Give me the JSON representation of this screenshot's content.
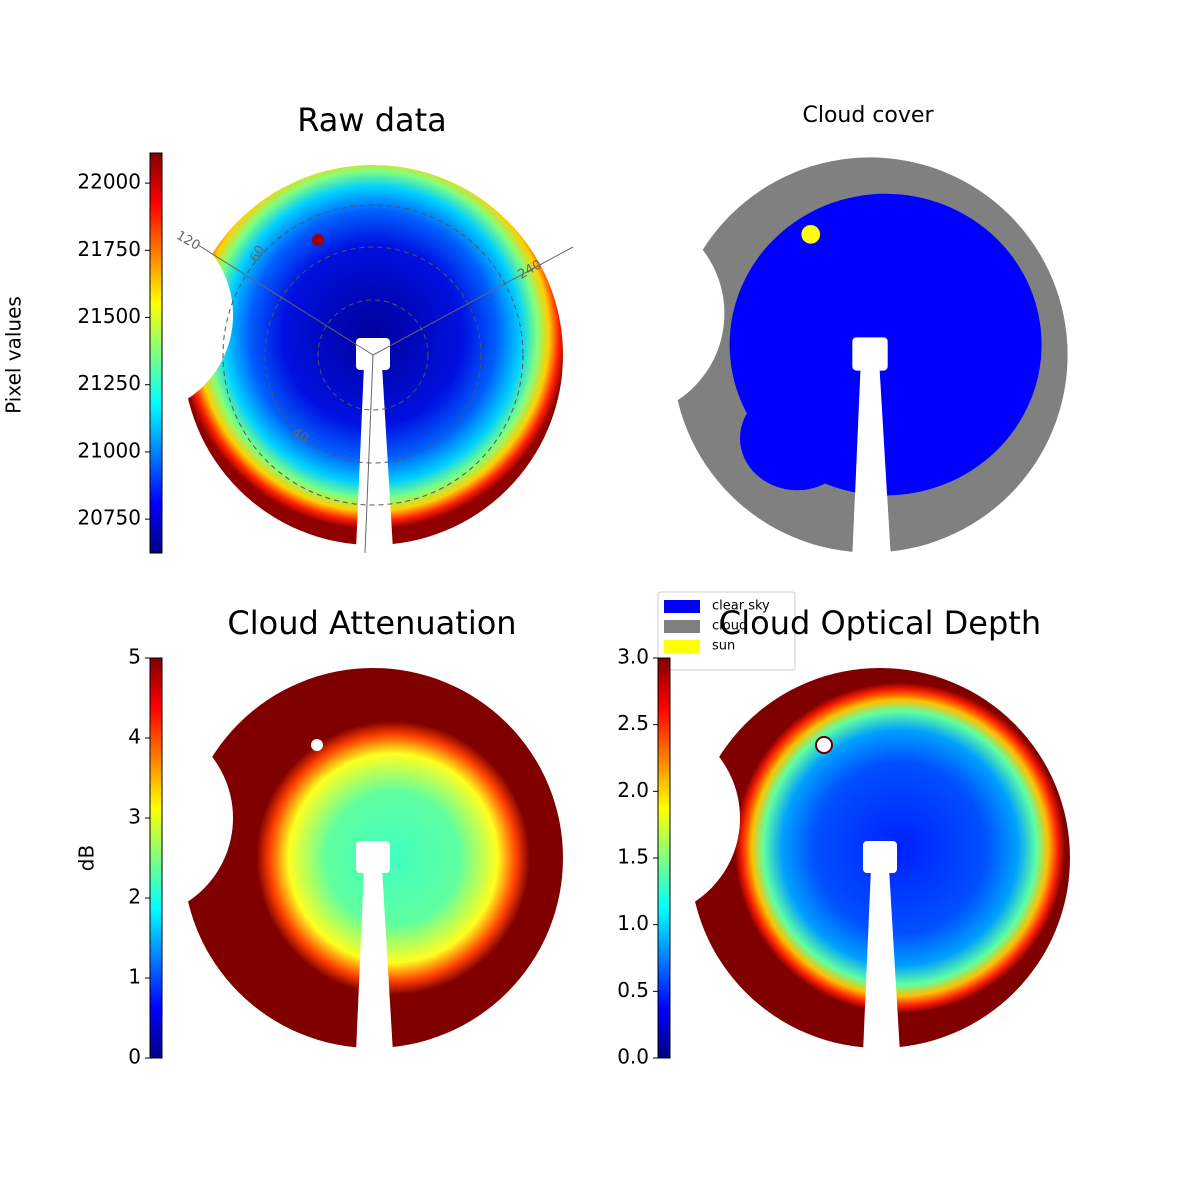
{
  "chart_data": [
    {
      "type": "image",
      "title": "Raw data",
      "colorbar_label": "Pixel values",
      "colormap": "jet",
      "ylim": [
        20624,
        22112
      ],
      "yticks": [
        20750,
        21000,
        21250,
        21500,
        21750,
        22000
      ],
      "annotations": [
        "120",
        "60",
        "240",
        "40"
      ]
    },
    {
      "type": "image",
      "title": "Cloud cover",
      "legend": [
        {
          "name": "clear sky",
          "color": "#0000ff"
        },
        {
          "name": "cloud",
          "color": "#808080"
        },
        {
          "name": "sun",
          "color": "#ffff00"
        }
      ]
    },
    {
      "type": "image",
      "title": "Cloud Attenuation",
      "colorbar_label": "dB",
      "colormap": "jet",
      "ylim": [
        0,
        5
      ],
      "yticks": [
        0,
        1,
        2,
        3,
        4,
        5
      ]
    },
    {
      "type": "image",
      "title": "Cloud Optical Depth",
      "colormap": "jet",
      "ylim": [
        0,
        3
      ],
      "yticks": [
        {
          "value": 0,
          "label": "0.0"
        },
        {
          "value": 0.5,
          "label": "0.5"
        },
        {
          "value": 1,
          "label": "1.0"
        },
        {
          "value": 1.5,
          "label": "1.5"
        },
        {
          "value": 2,
          "label": "2.0"
        },
        {
          "value": 2.5,
          "label": "2.5"
        },
        {
          "value": 3,
          "label": "3.0"
        }
      ]
    }
  ]
}
